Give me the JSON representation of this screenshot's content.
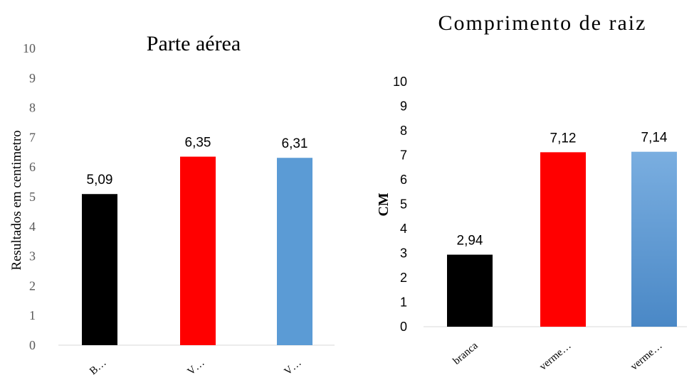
{
  "chart_data": [
    {
      "type": "bar",
      "title": "Parte aérea",
      "xlabel": "",
      "ylabel": "Resultados em centimetro",
      "ylim": [
        0,
        10
      ],
      "yticks": [
        "0",
        "1",
        "2",
        "3",
        "4",
        "5",
        "6",
        "7",
        "8",
        "9",
        "10"
      ],
      "categories": [
        "B…",
        "V…",
        "V…"
      ],
      "values": [
        5.09,
        6.35,
        6.31
      ],
      "value_labels": [
        "5,09",
        "6,35",
        "6,31"
      ],
      "colors": [
        "#000000",
        "#ff0000",
        "#5b9bd5"
      ],
      "grid": false,
      "legend": "none"
    },
    {
      "type": "bar",
      "title": "Comprimento de raiz",
      "xlabel": "",
      "ylabel": "CM",
      "ylim": [
        0,
        10
      ],
      "yticks": [
        "0",
        "1",
        "2",
        "3",
        "4",
        "5",
        "6",
        "7",
        "8",
        "9",
        "10"
      ],
      "categories": [
        "branca",
        "verme…",
        "verme…"
      ],
      "values": [
        2.94,
        7.12,
        7.14
      ],
      "value_labels": [
        "2,94",
        "7,12",
        "7,14"
      ],
      "colors": [
        "#000000",
        "#ff0000",
        "#5b9bd5"
      ],
      "grid": false,
      "legend": "none"
    }
  ]
}
